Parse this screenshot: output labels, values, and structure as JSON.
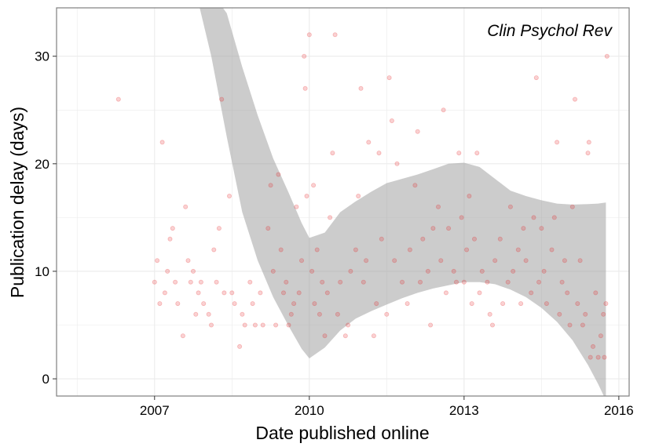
{
  "chart_data": {
    "type": "scatter",
    "annotation": "Clin Psychol Rev",
    "xlabel": "Date published online",
    "ylabel": "Publication delay (days)",
    "x_axis_type": "date (decimal years)",
    "xlim": [
      2005.1,
      2016.2
    ],
    "ylim": [
      -1.6,
      34.5
    ],
    "x_ticks": [
      2007,
      2010,
      2013,
      2016
    ],
    "x_tick_labels": [
      "2007",
      "2010",
      "2013",
      "2016"
    ],
    "y_ticks": [
      0,
      10,
      20,
      30
    ],
    "y_tick_labels": [
      "0",
      "10",
      "20",
      "30"
    ],
    "grid": true,
    "point_color": "#e41a1c",
    "point_opacity": 0.2,
    "band_color": "#999999",
    "points": [
      [
        2006.3,
        26
      ],
      [
        2007.0,
        9
      ],
      [
        2007.05,
        11
      ],
      [
        2007.1,
        7
      ],
      [
        2007.15,
        22
      ],
      [
        2007.2,
        8
      ],
      [
        2007.25,
        10
      ],
      [
        2007.3,
        13
      ],
      [
        2007.35,
        14
      ],
      [
        2007.4,
        9
      ],
      [
        2007.45,
        7
      ],
      [
        2007.55,
        4
      ],
      [
        2007.6,
        16
      ],
      [
        2007.65,
        11
      ],
      [
        2007.7,
        9
      ],
      [
        2007.75,
        10
      ],
      [
        2007.8,
        6
      ],
      [
        2007.85,
        8
      ],
      [
        2007.9,
        9
      ],
      [
        2007.95,
        7
      ],
      [
        2008.05,
        6
      ],
      [
        2008.1,
        5
      ],
      [
        2008.15,
        12
      ],
      [
        2008.2,
        9
      ],
      [
        2008.25,
        14
      ],
      [
        2008.3,
        26
      ],
      [
        2008.35,
        8
      ],
      [
        2008.45,
        17
      ],
      [
        2008.5,
        8
      ],
      [
        2008.55,
        7
      ],
      [
        2008.65,
        3
      ],
      [
        2008.7,
        6
      ],
      [
        2008.75,
        5
      ],
      [
        2008.85,
        9
      ],
      [
        2008.9,
        7
      ],
      [
        2008.95,
        5
      ],
      [
        2009.05,
        8
      ],
      [
        2009.1,
        5
      ],
      [
        2009.2,
        14
      ],
      [
        2009.25,
        18
      ],
      [
        2009.3,
        10
      ],
      [
        2009.35,
        5
      ],
      [
        2009.4,
        19
      ],
      [
        2009.45,
        12
      ],
      [
        2009.5,
        8
      ],
      [
        2009.55,
        9
      ],
      [
        2009.6,
        5
      ],
      [
        2009.65,
        6
      ],
      [
        2009.7,
        7
      ],
      [
        2009.75,
        16
      ],
      [
        2009.8,
        8
      ],
      [
        2009.85,
        11
      ],
      [
        2009.9,
        30
      ],
      [
        2009.92,
        27
      ],
      [
        2009.95,
        17
      ],
      [
        2010.0,
        32
      ],
      [
        2010.05,
        10
      ],
      [
        2010.08,
        18
      ],
      [
        2010.1,
        7
      ],
      [
        2010.15,
        12
      ],
      [
        2010.2,
        6
      ],
      [
        2010.25,
        9
      ],
      [
        2010.3,
        4
      ],
      [
        2010.35,
        8
      ],
      [
        2010.4,
        15
      ],
      [
        2010.45,
        21
      ],
      [
        2010.5,
        32
      ],
      [
        2010.55,
        6
      ],
      [
        2010.6,
        9
      ],
      [
        2010.7,
        4
      ],
      [
        2010.75,
        5
      ],
      [
        2010.8,
        10
      ],
      [
        2010.9,
        12
      ],
      [
        2010.95,
        17
      ],
      [
        2011.0,
        27
      ],
      [
        2011.05,
        9
      ],
      [
        2011.1,
        11
      ],
      [
        2011.15,
        22
      ],
      [
        2011.25,
        4
      ],
      [
        2011.3,
        7
      ],
      [
        2011.35,
        21
      ],
      [
        2011.4,
        13
      ],
      [
        2011.5,
        6
      ],
      [
        2011.55,
        28
      ],
      [
        2011.6,
        24
      ],
      [
        2011.65,
        11
      ],
      [
        2011.7,
        20
      ],
      [
        2011.8,
        9
      ],
      [
        2011.9,
        7
      ],
      [
        2011.95,
        12
      ],
      [
        2012.05,
        18
      ],
      [
        2012.1,
        23
      ],
      [
        2012.15,
        9
      ],
      [
        2012.2,
        13
      ],
      [
        2012.3,
        10
      ],
      [
        2012.35,
        5
      ],
      [
        2012.4,
        14
      ],
      [
        2012.5,
        16
      ],
      [
        2012.55,
        11
      ],
      [
        2012.6,
        25
      ],
      [
        2012.65,
        8
      ],
      [
        2012.7,
        14
      ],
      [
        2012.8,
        10
      ],
      [
        2012.85,
        9
      ],
      [
        2012.9,
        21
      ],
      [
        2012.95,
        15
      ],
      [
        2013.0,
        9
      ],
      [
        2013.05,
        12
      ],
      [
        2013.1,
        17
      ],
      [
        2013.15,
        7
      ],
      [
        2013.2,
        13
      ],
      [
        2013.25,
        21
      ],
      [
        2013.3,
        8
      ],
      [
        2013.35,
        10
      ],
      [
        2013.45,
        9
      ],
      [
        2013.5,
        6
      ],
      [
        2013.55,
        5
      ],
      [
        2013.6,
        11
      ],
      [
        2013.7,
        13
      ],
      [
        2013.75,
        7
      ],
      [
        2013.85,
        9
      ],
      [
        2013.9,
        16
      ],
      [
        2013.95,
        10
      ],
      [
        2014.05,
        12
      ],
      [
        2014.1,
        7
      ],
      [
        2014.15,
        14
      ],
      [
        2014.2,
        11
      ],
      [
        2014.3,
        8
      ],
      [
        2014.35,
        15
      ],
      [
        2014.4,
        28
      ],
      [
        2014.45,
        9
      ],
      [
        2014.5,
        14
      ],
      [
        2014.55,
        10
      ],
      [
        2014.6,
        7
      ],
      [
        2014.7,
        12
      ],
      [
        2014.75,
        15
      ],
      [
        2014.8,
        22
      ],
      [
        2014.85,
        6
      ],
      [
        2014.9,
        9
      ],
      [
        2014.95,
        11
      ],
      [
        2015.0,
        8
      ],
      [
        2015.05,
        5
      ],
      [
        2015.1,
        16
      ],
      [
        2015.15,
        26
      ],
      [
        2015.2,
        7
      ],
      [
        2015.25,
        11
      ],
      [
        2015.3,
        5
      ],
      [
        2015.35,
        6
      ],
      [
        2015.4,
        21
      ],
      [
        2015.42,
        22
      ],
      [
        2015.45,
        2
      ],
      [
        2015.5,
        3
      ],
      [
        2015.55,
        8
      ],
      [
        2015.6,
        2
      ],
      [
        2015.65,
        4
      ],
      [
        2015.7,
        6
      ],
      [
        2015.72,
        2
      ],
      [
        2015.75,
        7
      ],
      [
        2015.77,
        30
      ]
    ],
    "smooth_band": {
      "x": [
        2007.5,
        2007.8,
        2008.1,
        2008.4,
        2008.7,
        2009.0,
        2009.3,
        2009.6,
        2009.85,
        2010.0,
        2010.3,
        2010.6,
        2010.9,
        2011.2,
        2011.5,
        2011.8,
        2012.1,
        2012.4,
        2012.7,
        2013.0,
        2013.3,
        2013.6,
        2013.9,
        2014.2,
        2014.5,
        2014.8,
        2015.1,
        2015.4,
        2015.6,
        2015.75
      ],
      "upper": [
        36,
        36,
        36,
        34,
        29,
        24.5,
        20.5,
        17.3,
        14.5,
        13.1,
        13.6,
        15.5,
        16.5,
        17.4,
        18.2,
        18.6,
        19.0,
        19.5,
        20.0,
        20.1,
        19.7,
        18.6,
        17.5,
        17.0,
        16.6,
        16.3,
        16.2,
        16.25,
        16.3,
        16.4
      ],
      "lower": [
        36,
        36,
        30,
        22.5,
        15.5,
        11,
        7.6,
        4.9,
        2.8,
        1.9,
        2.9,
        4.5,
        5.6,
        6.3,
        6.9,
        7.5,
        8.0,
        8.4,
        8.7,
        9.0,
        9.0,
        8.8,
        8.3,
        7.6,
        6.6,
        5.3,
        3.6,
        1.3,
        -0.5,
        -2.0
      ]
    }
  }
}
